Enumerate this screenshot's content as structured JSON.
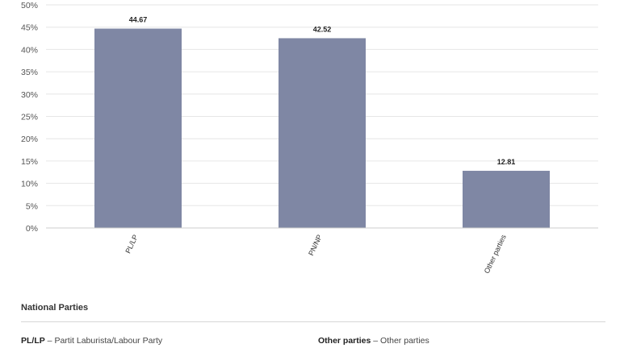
{
  "chart_data": {
    "type": "bar",
    "categories": [
      "PL/LP",
      "PN/NP",
      "Other parties"
    ],
    "values": [
      44.67,
      42.52,
      12.81
    ],
    "data_labels": [
      "44.67",
      "42.52",
      "12.81"
    ],
    "yticks": [
      "0%",
      "5%",
      "10%",
      "15%",
      "20%",
      "25%",
      "30%",
      "35%",
      "40%",
      "45%",
      "50%"
    ],
    "ylim": [
      0,
      50
    ],
    "grid": true,
    "bar_color": "#7f87a4",
    "gridline_color": "#e6e6e6",
    "axis_color": "#cccccc"
  },
  "legend": {
    "title": "National Parties",
    "entries": [
      {
        "abbr": "PL/LP",
        "separator": " – ",
        "name": "Partit Laburista/Labour Party"
      },
      {
        "abbr": "Other parties",
        "separator": " – ",
        "name": "Other parties"
      }
    ]
  }
}
